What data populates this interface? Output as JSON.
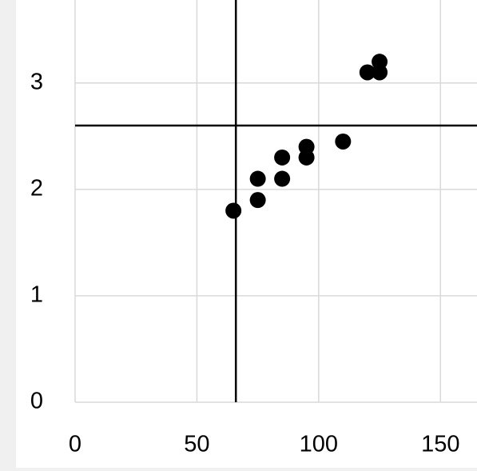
{
  "chart_data": {
    "type": "scatter",
    "x": [
      65,
      75,
      75,
      85,
      85,
      95,
      95,
      110,
      120,
      125,
      125
    ],
    "values": [
      1.8,
      1.9,
      2.1,
      2.1,
      2.3,
      2.3,
      2.4,
      2.45,
      3.1,
      3.1,
      3.2
    ],
    "color": "#000000",
    "xlim": [
      0,
      165
    ],
    "xticks": [
      0,
      50,
      100,
      150
    ],
    "ylim": [
      0,
      3.78
    ],
    "yticks": [
      0,
      1,
      2,
      3
    ],
    "grid": true,
    "vlines": [
      66
    ],
    "hlines": [
      2.6
    ]
  }
}
